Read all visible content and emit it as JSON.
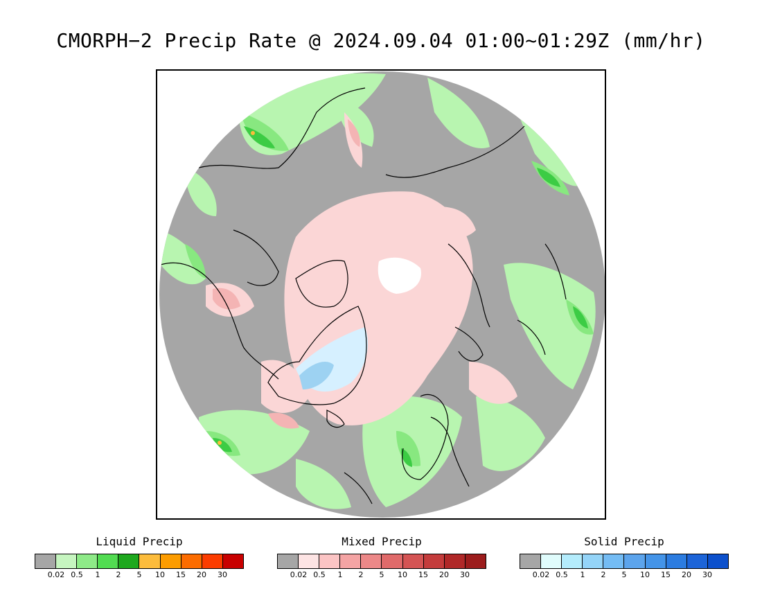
{
  "title": "CMORPH−2 Precip Rate @ 2024.09.04 01:00~01:29Z (mm/hr)",
  "map": {
    "projection": "north-polar-stereographic",
    "colors": {
      "no_precip": "#a6a6a6",
      "light_liquid": "#b8f5b0",
      "moderate_liquid": "#88e880",
      "heavy_liquid": "#3ccc44",
      "light_mixed": "#fbd6d6",
      "moderate_mixed": "#f4b4b4",
      "light_solid": "#d6f0ff",
      "moderate_solid": "#9dd2f2",
      "no_data": "#ffffff",
      "coastline": "#000000"
    }
  },
  "legends": [
    {
      "title": "Liquid Precip",
      "colors": [
        "#a6a6a6",
        "#c6f5c0",
        "#8eea88",
        "#52dc52",
        "#1ea81e",
        "#fcbc3c",
        "#fc9c00",
        "#fc6c00",
        "#fc3c00",
        "#c80000"
      ],
      "ticks": [
        "0.02",
        "0.5",
        "1",
        "2",
        "5",
        "10",
        "15",
        "20",
        "30"
      ]
    },
    {
      "title": "Mixed Precip",
      "colors": [
        "#a6a6a6",
        "#fde4e4",
        "#fbc4c4",
        "#f4a4a4",
        "#ec8888",
        "#e06a6a",
        "#d45454",
        "#c43c3c",
        "#b02828",
        "#9c1c1c"
      ],
      "ticks": [
        "0.02",
        "0.5",
        "1",
        "2",
        "5",
        "10",
        "15",
        "20",
        "30"
      ]
    },
    {
      "title": "Solid Precip",
      "colors": [
        "#a6a6a6",
        "#e0fcfc",
        "#b4ecfc",
        "#94d4f8",
        "#74bcf4",
        "#5ca4ec",
        "#4494e8",
        "#2c7ce0",
        "#1c64d8",
        "#0c50cc"
      ],
      "ticks": [
        "0.02",
        "0.5",
        "1",
        "2",
        "5",
        "10",
        "15",
        "20",
        "30"
      ]
    }
  ]
}
